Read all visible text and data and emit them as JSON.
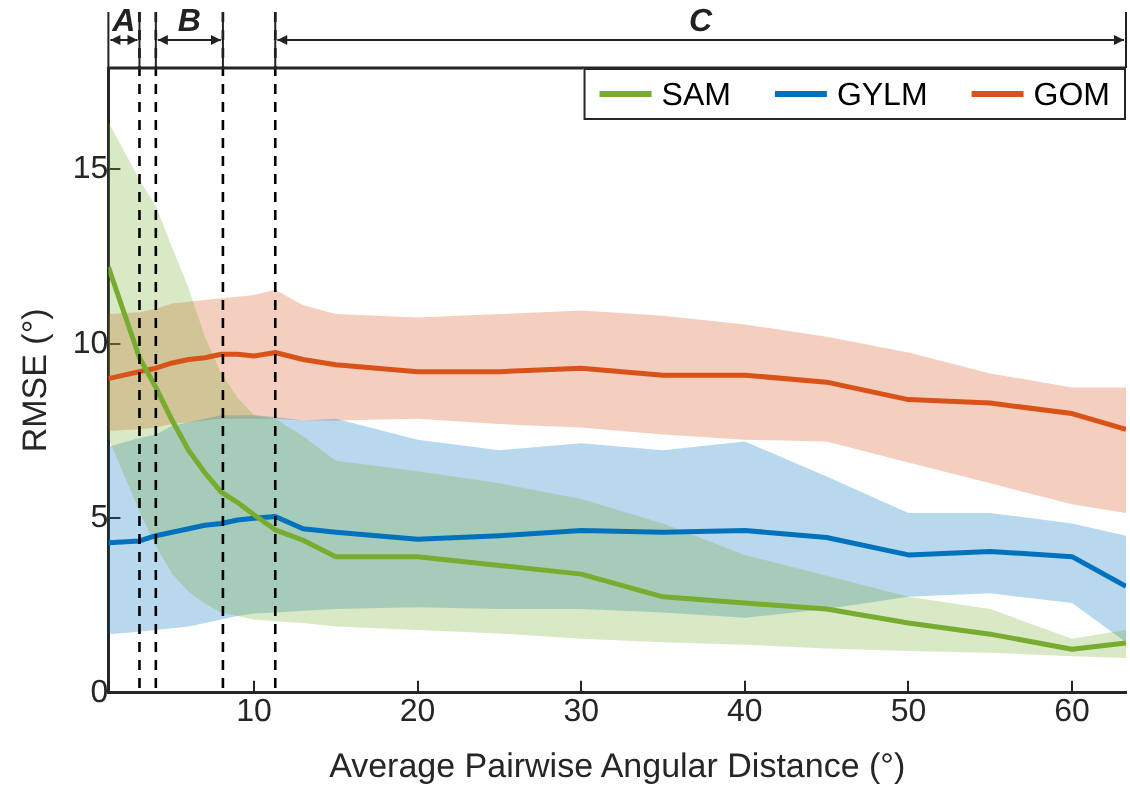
{
  "chart_data": {
    "type": "line",
    "xlabel": "Average Pairwise Angular Distance (°)",
    "ylabel": "RMSE (°)",
    "x": [
      1.1,
      3,
      4,
      5,
      6,
      7,
      8,
      9,
      10,
      11.3,
      13,
      15,
      20,
      25,
      30,
      35,
      40,
      45,
      50,
      55,
      60,
      63.3
    ],
    "series": [
      {
        "name": "SAM",
        "color": "#77ac30",
        "values": [
          12.2,
          9.6,
          8.75,
          7.8,
          6.95,
          6.3,
          5.75,
          5.45,
          5.1,
          4.67,
          4.37,
          3.9,
          3.9,
          3.65,
          3.4,
          2.75,
          2.57,
          2.4,
          2.0,
          1.68,
          1.25,
          1.43
        ],
        "upper": [
          16.35,
          14.7,
          13.95,
          12.75,
          11.6,
          10.2,
          9.15,
          8.45,
          7.95,
          7.85,
          7.35,
          6.65,
          6.35,
          6.0,
          5.55,
          4.85,
          3.95,
          3.35,
          2.75,
          2.4,
          1.55,
          1.8
        ],
        "lower": [
          7.3,
          5.2,
          4.2,
          3.4,
          2.9,
          2.55,
          2.3,
          2.2,
          2.1,
          2.05,
          2.0,
          1.9,
          1.8,
          1.7,
          1.55,
          1.45,
          1.38,
          1.27,
          1.2,
          1.15,
          1.05,
          1.0
        ]
      },
      {
        "name": "GYLM",
        "color": "#0072bd",
        "values": [
          4.3,
          4.35,
          4.5,
          4.6,
          4.7,
          4.8,
          4.85,
          4.95,
          5.0,
          5.05,
          4.7,
          4.6,
          4.4,
          4.5,
          4.65,
          4.6,
          4.65,
          4.45,
          3.95,
          4.05,
          3.9,
          3.05
        ],
        "upper": [
          7.05,
          7.3,
          7.4,
          7.65,
          7.75,
          7.85,
          7.95,
          7.95,
          7.95,
          7.9,
          7.8,
          7.85,
          7.25,
          6.95,
          7.15,
          6.95,
          7.2,
          6.2,
          5.15,
          5.15,
          4.85,
          4.5
        ],
        "lower": [
          1.68,
          1.75,
          1.8,
          1.85,
          1.9,
          2.0,
          2.1,
          2.2,
          2.27,
          2.3,
          2.35,
          2.4,
          2.45,
          2.4,
          2.4,
          2.3,
          2.15,
          2.4,
          2.75,
          2.85,
          2.57,
          1.45
        ]
      },
      {
        "name": "GOM",
        "color": "#d95319",
        "values": [
          9.0,
          9.2,
          9.3,
          9.45,
          9.55,
          9.6,
          9.7,
          9.7,
          9.65,
          9.75,
          9.55,
          9.4,
          9.2,
          9.2,
          9.3,
          9.1,
          9.1,
          8.9,
          8.4,
          8.3,
          8.0,
          7.55
        ],
        "upper": [
          10.85,
          10.9,
          11.0,
          11.15,
          11.2,
          11.25,
          11.3,
          11.35,
          11.4,
          11.55,
          11.1,
          10.85,
          10.75,
          10.85,
          10.95,
          10.8,
          10.55,
          10.2,
          9.75,
          9.15,
          8.75,
          8.75
        ],
        "lower": [
          7.5,
          7.55,
          7.6,
          7.7,
          7.75,
          7.8,
          7.85,
          7.85,
          7.85,
          7.85,
          7.8,
          7.8,
          7.85,
          7.7,
          7.6,
          7.4,
          7.25,
          7.2,
          6.6,
          6.0,
          5.4,
          5.15
        ]
      }
    ],
    "xlim": [
      1.1,
      63.3
    ],
    "xticks": [
      10,
      20,
      30,
      40,
      50,
      60
    ],
    "ylim": [
      0,
      17.9
    ],
    "yticks": [
      0,
      5,
      10,
      15
    ],
    "ref_lines": [
      {
        "axis": "x",
        "value": 3.0,
        "line_style": "dashed"
      },
      {
        "axis": "x",
        "value": 4.0,
        "line_style": "dashed"
      },
      {
        "axis": "x",
        "value": 8.1,
        "line_style": "dashed"
      },
      {
        "axis": "x",
        "value": 11.3,
        "line_style": "dashed"
      }
    ],
    "annotations": [
      "A",
      "B",
      "C"
    ],
    "grid": false,
    "legend": "top right",
    "marker": "none",
    "line_style": "solid"
  }
}
